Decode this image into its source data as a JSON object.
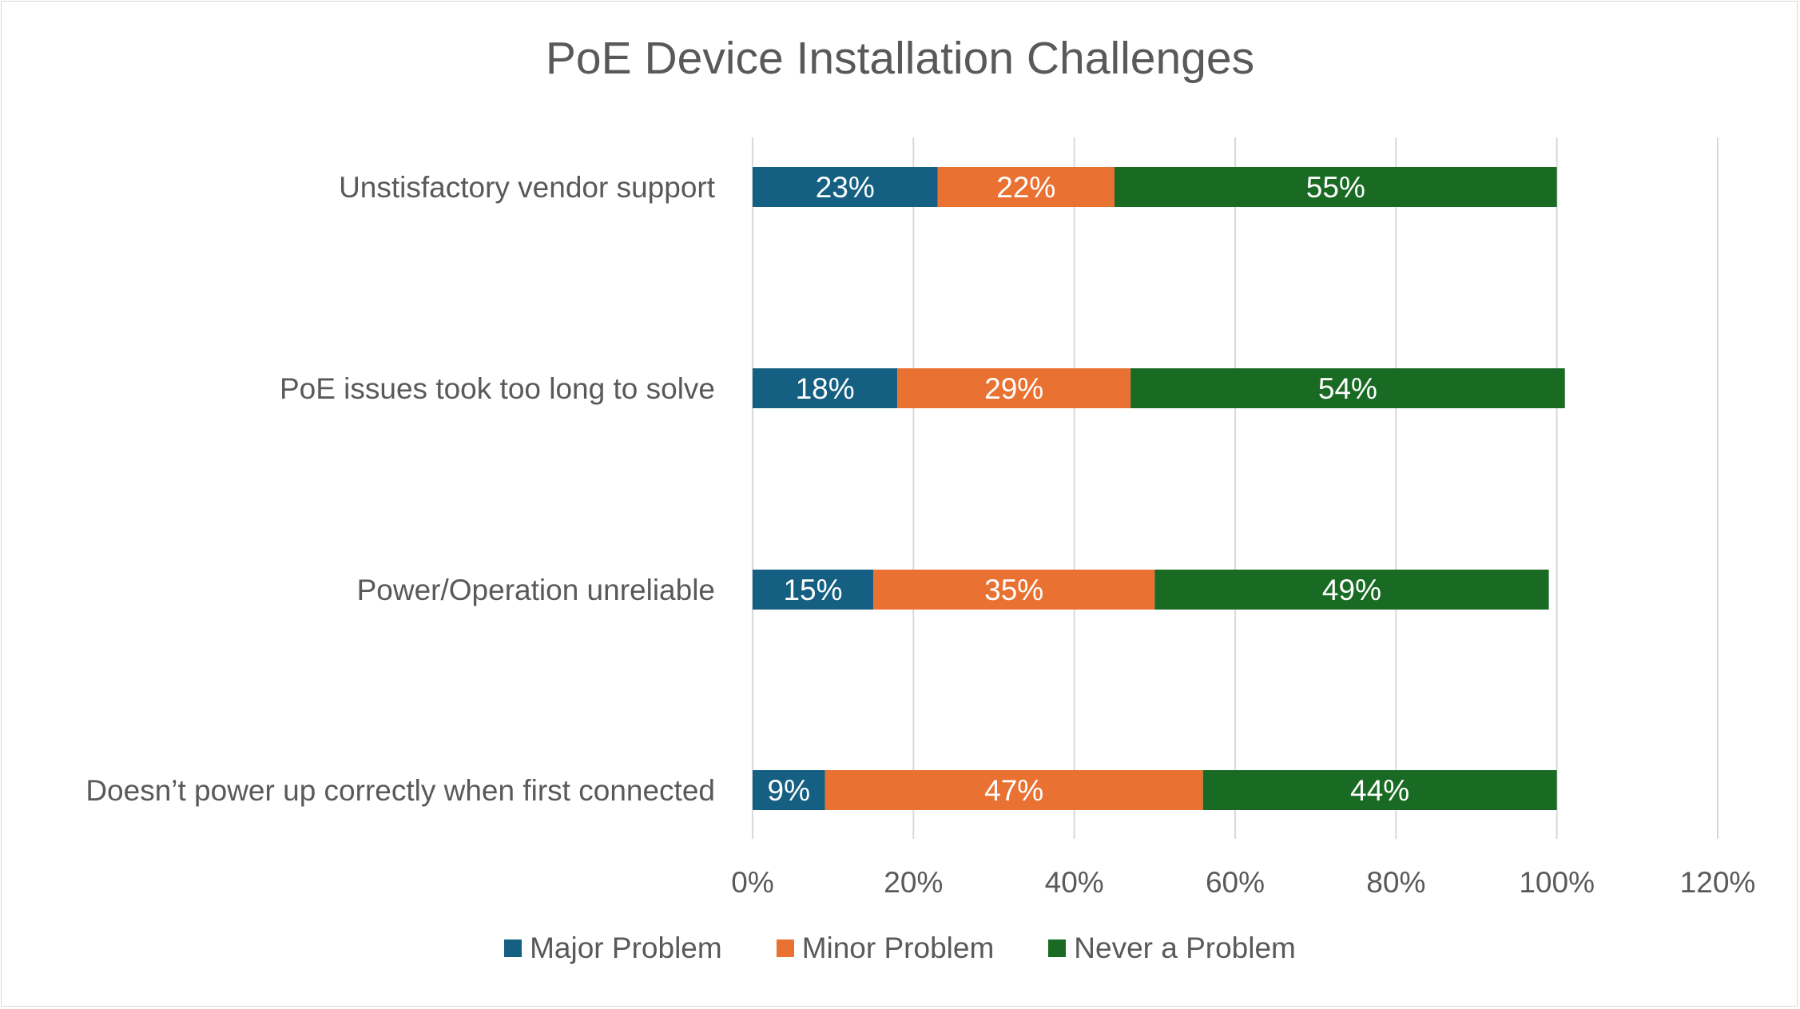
{
  "chart_data": {
    "type": "bar",
    "orientation": "horizontal",
    "stacked": true,
    "title": "PoE Device Installation Challenges",
    "categories": [
      "Unstisfactory vendor support",
      "PoE issues took too long to solve",
      "Power/Operation unreliable",
      "Doesn’t power up correctly when first connected"
    ],
    "series": [
      {
        "name": "Major Problem",
        "color": "#156082",
        "values": [
          0.23,
          0.18,
          0.15,
          0.09
        ],
        "labels": [
          "23%",
          "18%",
          "15%",
          "9%"
        ]
      },
      {
        "name": "Minor Problem",
        "color": "#E97132",
        "values": [
          0.22,
          0.29,
          0.35,
          0.47
        ],
        "labels": [
          "22%",
          "29%",
          "35%",
          "47%"
        ]
      },
      {
        "name": "Never a Problem",
        "color": "#196B24",
        "values": [
          0.55,
          0.54,
          0.49,
          0.44
        ],
        "labels": [
          "55%",
          "54%",
          "49%",
          "44%"
        ]
      }
    ],
    "xlim": [
      0,
      1.2
    ],
    "xticks": [
      0,
      0.2,
      0.4,
      0.6,
      0.8,
      1.0,
      1.2
    ],
    "xtick_labels": [
      "0%",
      "20%",
      "40%",
      "60%",
      "80%",
      "100%",
      "120%"
    ],
    "grid": "vertical",
    "legend_position": "bottom",
    "xlabel": "",
    "ylabel": ""
  }
}
